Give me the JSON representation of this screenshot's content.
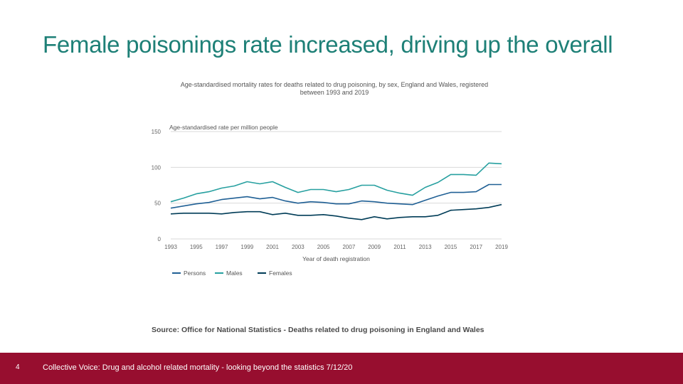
{
  "slide": {
    "title": "Female poisonings rate increased, driving up the overall",
    "source": "Source: Office for National Statistics - Deaths related to drug poisoning in England and Wales"
  },
  "footer": {
    "page_number": "4",
    "text": "Collective Voice: Drug and alcohol related mortality - looking beyond the statistics 7/12/20",
    "background_color": "#970e2f"
  },
  "chart_data": {
    "type": "line",
    "title": "Age-standardised mortality rates for deaths related to drug poisoning, by sex, England and Wales, registered between 1993 and 2019",
    "ylabel": "Age-standardised rate per million people",
    "xlabel": "Year of death registration",
    "ylim": [
      0,
      150
    ],
    "yticks": [
      0,
      50,
      100,
      150
    ],
    "xticks": [
      1993,
      1995,
      1997,
      1999,
      2001,
      2003,
      2005,
      2007,
      2009,
      2011,
      2013,
      2015,
      2017,
      2019
    ],
    "grid": true,
    "legend_position": "bottom-left",
    "x": [
      1993,
      1994,
      1995,
      1996,
      1997,
      1998,
      1999,
      2000,
      2001,
      2002,
      2003,
      2004,
      2005,
      2006,
      2007,
      2008,
      2009,
      2010,
      2011,
      2012,
      2013,
      2014,
      2015,
      2016,
      2017,
      2018,
      2019
    ],
    "series": [
      {
        "name": "Persons",
        "color": "#206095",
        "values": [
          43,
          46,
          49,
          51,
          55,
          57,
          59,
          56,
          58,
          53,
          50,
          52,
          51,
          49,
          49,
          53,
          52,
          50,
          49,
          48,
          54,
          60,
          65,
          65,
          66,
          76,
          76
        ]
      },
      {
        "name": "Males",
        "color": "#27a0a0",
        "values": [
          52,
          57,
          63,
          66,
          71,
          74,
          80,
          77,
          80,
          72,
          65,
          69,
          69,
          66,
          69,
          75,
          75,
          68,
          64,
          61,
          72,
          79,
          90,
          90,
          89,
          106,
          105
        ]
      },
      {
        "name": "Females",
        "color": "#003c57",
        "values": [
          35,
          36,
          36,
          36,
          35,
          37,
          38,
          38,
          34,
          36,
          33,
          33,
          34,
          32,
          29,
          27,
          31,
          28,
          30,
          31,
          31,
          33,
          40,
          41,
          42,
          44,
          48
        ]
      }
    ]
  }
}
